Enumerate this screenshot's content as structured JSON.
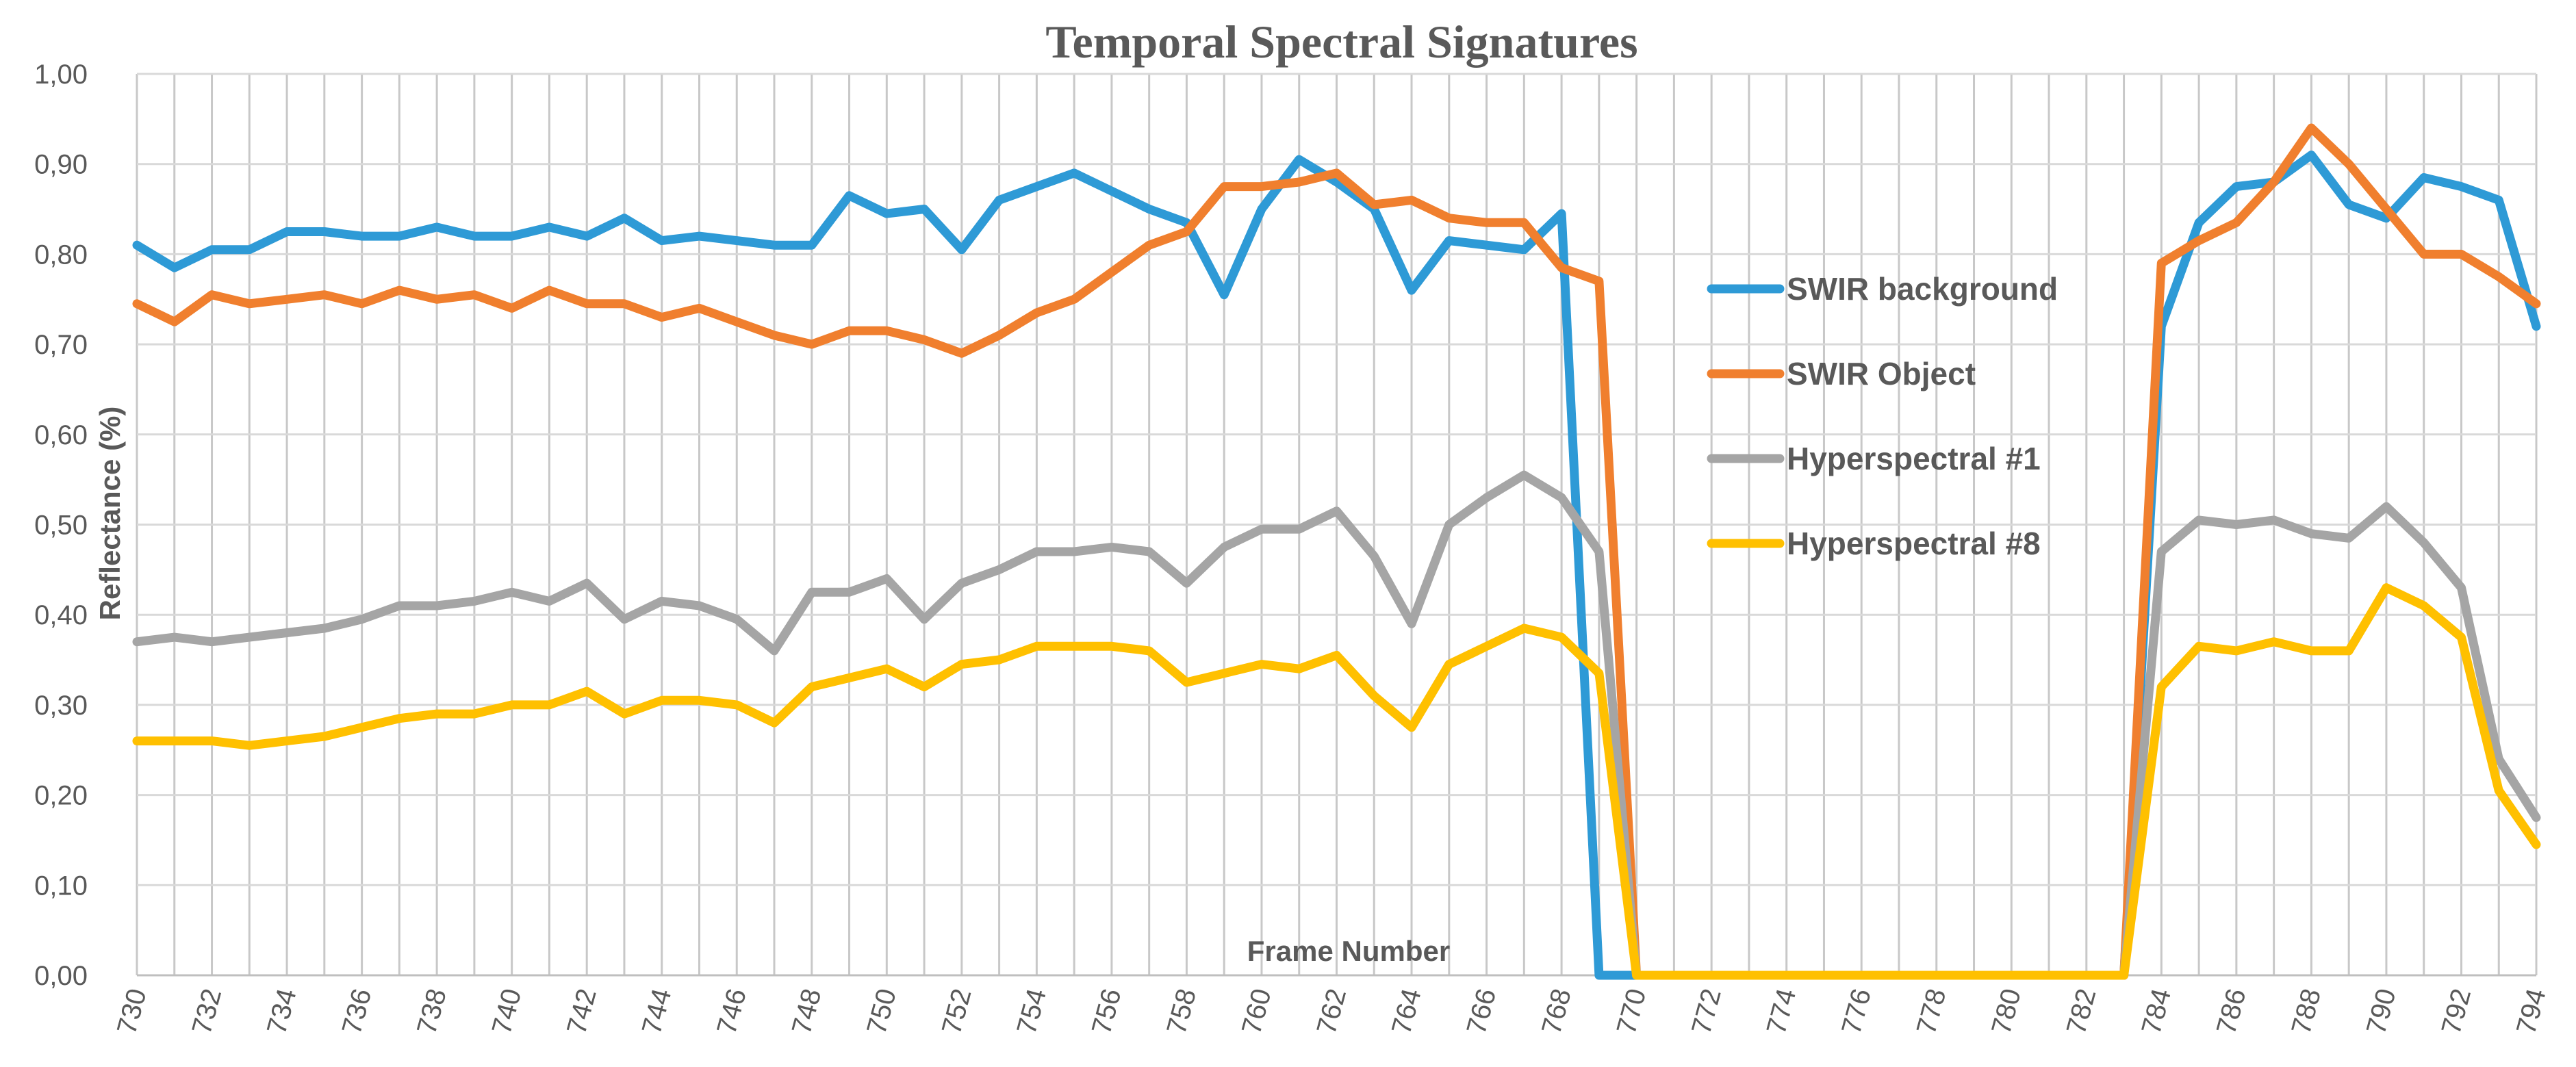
{
  "chart_data": {
    "type": "line",
    "title": "Temporal Spectral Signatures",
    "xlabel": "Frame Number",
    "ylabel": "Reflectance (%)",
    "x": [
      730,
      731,
      732,
      733,
      734,
      735,
      736,
      737,
      738,
      739,
      740,
      741,
      742,
      743,
      744,
      745,
      746,
      747,
      748,
      749,
      750,
      751,
      752,
      753,
      754,
      755,
      756,
      757,
      758,
      759,
      760,
      761,
      762,
      763,
      764,
      765,
      766,
      767,
      768,
      769,
      770,
      771,
      772,
      773,
      774,
      775,
      776,
      777,
      778,
      779,
      780,
      781,
      782,
      783,
      784,
      785,
      786,
      787,
      788,
      789,
      790,
      791,
      792,
      793,
      794
    ],
    "x_tick_labels": [
      "730",
      "732",
      "734",
      "736",
      "738",
      "740",
      "742",
      "744",
      "746",
      "748",
      "750",
      "752",
      "754",
      "756",
      "758",
      "760",
      "762",
      "764",
      "766",
      "768",
      "770",
      "772",
      "774",
      "776",
      "778",
      "780",
      "782",
      "784",
      "786",
      "788",
      "790",
      "792",
      "794"
    ],
    "y_tick_labels": [
      "0,00",
      "0,10",
      "0,20",
      "0,30",
      "0,40",
      "0,50",
      "0,60",
      "0,70",
      "0,80",
      "0,90",
      "1,00"
    ],
    "ylim": [
      0,
      1
    ],
    "xlim": [
      730,
      794
    ],
    "grid": {
      "horizontal": true,
      "vertical": true
    },
    "legend_position": "right",
    "series": [
      {
        "name": "SWIR background",
        "color": "#2E9AD6",
        "values": [
          0.81,
          0.785,
          0.805,
          0.805,
          0.825,
          0.825,
          0.82,
          0.82,
          0.83,
          0.82,
          0.82,
          0.83,
          0.82,
          0.84,
          0.815,
          0.82,
          0.815,
          0.81,
          0.81,
          0.865,
          0.845,
          0.85,
          0.805,
          0.86,
          0.875,
          0.89,
          0.87,
          0.85,
          0.835,
          0.755,
          0.85,
          0.905,
          0.88,
          0.85,
          0.76,
          0.815,
          0.81,
          0.805,
          0.845,
          0,
          0,
          0,
          0,
          0,
          0,
          0,
          0,
          0,
          0,
          0,
          0,
          0,
          0,
          0,
          0.72,
          0.835,
          0.875,
          0.88,
          0.91,
          0.855,
          0.84,
          0.885,
          0.875,
          0.86,
          0.72
        ]
      },
      {
        "name": "SWIR Object",
        "color": "#F07F2E",
        "values": [
          0.745,
          0.725,
          0.755,
          0.745,
          0.75,
          0.755,
          0.745,
          0.76,
          0.75,
          0.755,
          0.74,
          0.76,
          0.745,
          0.745,
          0.73,
          0.74,
          0.725,
          0.71,
          0.7,
          0.715,
          0.715,
          0.705,
          0.69,
          0.71,
          0.735,
          0.75,
          0.78,
          0.81,
          0.825,
          0.875,
          0.875,
          0.88,
          0.89,
          0.855,
          0.86,
          0.84,
          0.835,
          0.835,
          0.785,
          0.77,
          0,
          0,
          0,
          0,
          0,
          0,
          0,
          0,
          0,
          0,
          0,
          0,
          0,
          0,
          0.79,
          0.815,
          0.835,
          0.88,
          0.94,
          0.9,
          0.85,
          0.8,
          0.8,
          0.775,
          0.745
        ]
      },
      {
        "name": "Hyperspectral #1",
        "color": "#A5A5A5",
        "values": [
          0.37,
          0.375,
          0.37,
          0.375,
          0.38,
          0.385,
          0.395,
          0.41,
          0.41,
          0.415,
          0.425,
          0.415,
          0.435,
          0.395,
          0.415,
          0.41,
          0.395,
          0.36,
          0.425,
          0.425,
          0.44,
          0.395,
          0.435,
          0.45,
          0.47,
          0.47,
          0.475,
          0.47,
          0.435,
          0.475,
          0.495,
          0.495,
          0.515,
          0.465,
          0.39,
          0.5,
          0.53,
          0.555,
          0.53,
          0.47,
          0,
          0,
          0,
          0,
          0,
          0,
          0,
          0,
          0,
          0,
          0,
          0,
          0,
          0,
          0.47,
          0.505,
          0.5,
          0.505,
          0.49,
          0.485,
          0.52,
          0.48,
          0.43,
          0.24,
          0.175
        ]
      },
      {
        "name": "Hyperspectral #8",
        "color": "#FFC000",
        "values": [
          0.26,
          0.26,
          0.26,
          0.255,
          0.26,
          0.265,
          0.275,
          0.285,
          0.29,
          0.29,
          0.3,
          0.3,
          0.315,
          0.29,
          0.305,
          0.305,
          0.3,
          0.28,
          0.32,
          0.33,
          0.34,
          0.32,
          0.345,
          0.35,
          0.365,
          0.365,
          0.365,
          0.36,
          0.325,
          0.335,
          0.345,
          0.34,
          0.355,
          0.31,
          0.275,
          0.345,
          0.365,
          0.385,
          0.375,
          0.335,
          0,
          0,
          0,
          0,
          0,
          0,
          0,
          0,
          0,
          0,
          0,
          0,
          0,
          0,
          0.32,
          0.365,
          0.36,
          0.37,
          0.36,
          0.36,
          0.43,
          0.41,
          0.375,
          0.205,
          0.145
        ]
      }
    ]
  }
}
